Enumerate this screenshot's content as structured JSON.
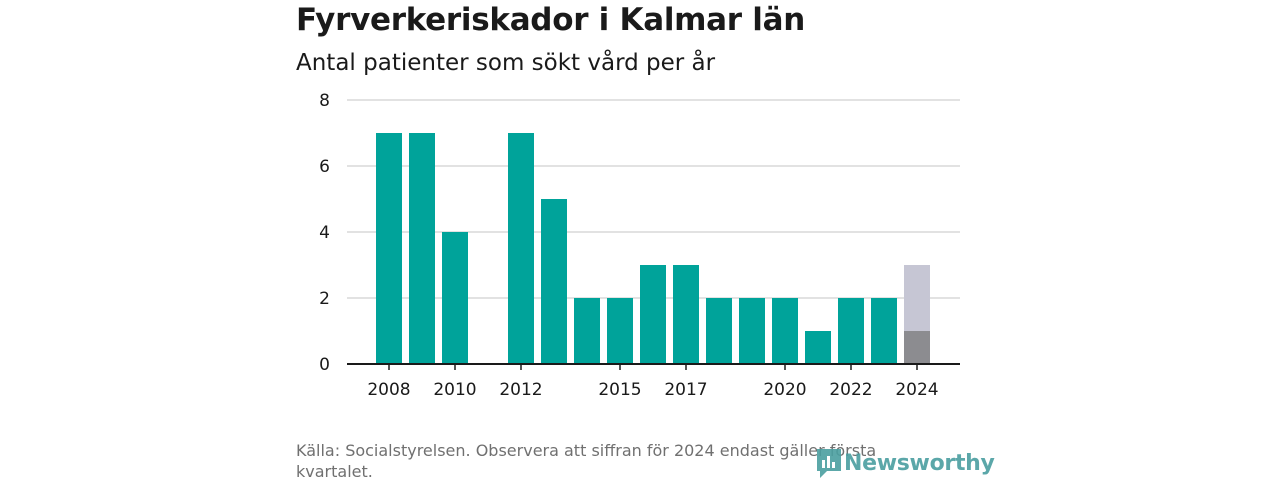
{
  "title": "Fyrverkeriskador i Kalmar län",
  "subtitle": "Antal patienter som sökt vård per år",
  "source": "Källa: Socialstyrelsen. Observera att siffran för 2024 endast gäller första kvartalet.",
  "brand": {
    "name": "Newsworthy",
    "icon": "newsworthy-logo-icon"
  },
  "colors": {
    "bar": "#00a39a",
    "bar_partial": "#8c8c90",
    "bar_remaining": "#c6c6d4",
    "grid": "#d9d9d9",
    "axis": "#1a1a1a"
  },
  "chart_data": {
    "type": "bar",
    "categories": [
      "2008",
      "2009",
      "2010",
      "2011",
      "2012",
      "2013",
      "2014",
      "2015",
      "2016",
      "2017",
      "2018",
      "2019",
      "2020",
      "2021",
      "2022",
      "2023",
      "2024"
    ],
    "values": [
      7,
      7,
      4,
      0,
      7,
      5,
      2,
      2,
      3,
      3,
      2,
      2,
      2,
      1,
      2,
      2,
      1
    ],
    "partial_period": {
      "category": "2024",
      "value": 1,
      "placeholder_top": 3
    },
    "x_tick_labels": [
      "2008",
      "2010",
      "2012",
      "2015",
      "2017",
      "2020",
      "2022",
      "2024"
    ],
    "y_ticks": [
      0,
      2,
      4,
      6,
      8
    ],
    "ylim": [
      0,
      8
    ],
    "grid": true,
    "xlabel": "",
    "ylabel": ""
  }
}
